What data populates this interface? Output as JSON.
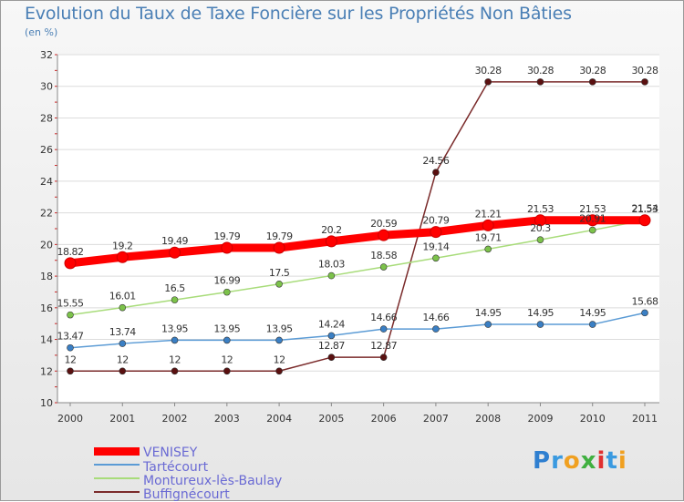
{
  "chart_data": {
    "type": "line",
    "title": "Evolution du Taux de Taxe Foncière sur les Propriétés Non Bâties",
    "subtitle": "(en %)",
    "xlabel": "",
    "ylabel": "",
    "ylim": [
      10,
      32
    ],
    "yticks": [
      "10",
      "12",
      "14",
      "16",
      "18",
      "20",
      "22",
      "24",
      "26",
      "28",
      "30",
      "32"
    ],
    "grid": "horizontal",
    "categories": [
      "2000",
      "2001",
      "2002",
      "2003",
      "2004",
      "2005",
      "2006",
      "2007",
      "2008",
      "2009",
      "2010",
      "2011"
    ],
    "series": [
      {
        "name": "VENISEY",
        "color": "#ff0000",
        "marker_color": "#ff0000",
        "values": [
          18.82,
          19.2,
          19.49,
          19.79,
          19.79,
          20.2,
          20.59,
          20.79,
          21.21,
          21.53,
          21.53,
          21.53
        ],
        "labels": [
          "18.82",
          "19.2",
          "19.49",
          "19.79",
          "19.79",
          "20.2",
          "20.59",
          "20.79",
          "21.21",
          "21.53",
          "21.53",
          "21.53"
        ]
      },
      {
        "name": "Tartécourt",
        "color": "#5b9bd5",
        "marker_color": "#3a7fc4",
        "values": [
          13.47,
          13.74,
          13.95,
          13.95,
          13.95,
          14.24,
          14.66,
          14.66,
          14.95,
          14.95,
          14.95,
          15.68
        ],
        "labels": [
          "13.47",
          "13.74",
          "13.95",
          "13.95",
          "13.95",
          "14.24",
          "14.66",
          "14.66",
          "14.95",
          "14.95",
          "14.95",
          "15.68"
        ]
      },
      {
        "name": "Montureux-lès-Baulay",
        "color": "#a8dc7a",
        "marker_color": "#7cc24a",
        "values": [
          15.55,
          16.01,
          16.5,
          16.99,
          17.5,
          18.03,
          18.58,
          19.14,
          19.71,
          20.3,
          20.91,
          21.54
        ],
        "labels": [
          "15.55",
          "16.01",
          "16.5",
          "16.99",
          "17.5",
          "18.03",
          "18.58",
          "19.14",
          "19.71",
          "20.3",
          "20.91",
          "21.54"
        ]
      },
      {
        "name": "Buffignécourt",
        "color": "#7a2a2a",
        "marker_color": "#5a1010",
        "values": [
          12,
          12,
          12,
          12,
          12,
          12.87,
          12.87,
          24.56,
          30.28,
          30.28,
          30.28,
          30.28
        ],
        "labels": [
          "12",
          "12",
          "12",
          "12",
          "12",
          "12.87",
          "12.87",
          "24.56",
          "30.28",
          "30.28",
          "30.28",
          "30.28"
        ]
      }
    ]
  },
  "legend": {
    "items": [
      {
        "label": "VENISEY",
        "color": "#ff0000"
      },
      {
        "label": "Tartécourt",
        "color": "#5b9bd5"
      },
      {
        "label": "Montureux-lès-Baulay",
        "color": "#a8dc7a"
      },
      {
        "label": "Buffignécourt",
        "color": "#7a2a2a"
      }
    ]
  },
  "logo": {
    "letters": [
      "P",
      "r",
      "o",
      "x",
      "i",
      "t",
      "i"
    ],
    "colors": [
      "#2f7fd0",
      "#3a9ae0",
      "#f0a020",
      "#40b040",
      "#e03030",
      "#3a9ae0",
      "#f0a020"
    ]
  }
}
